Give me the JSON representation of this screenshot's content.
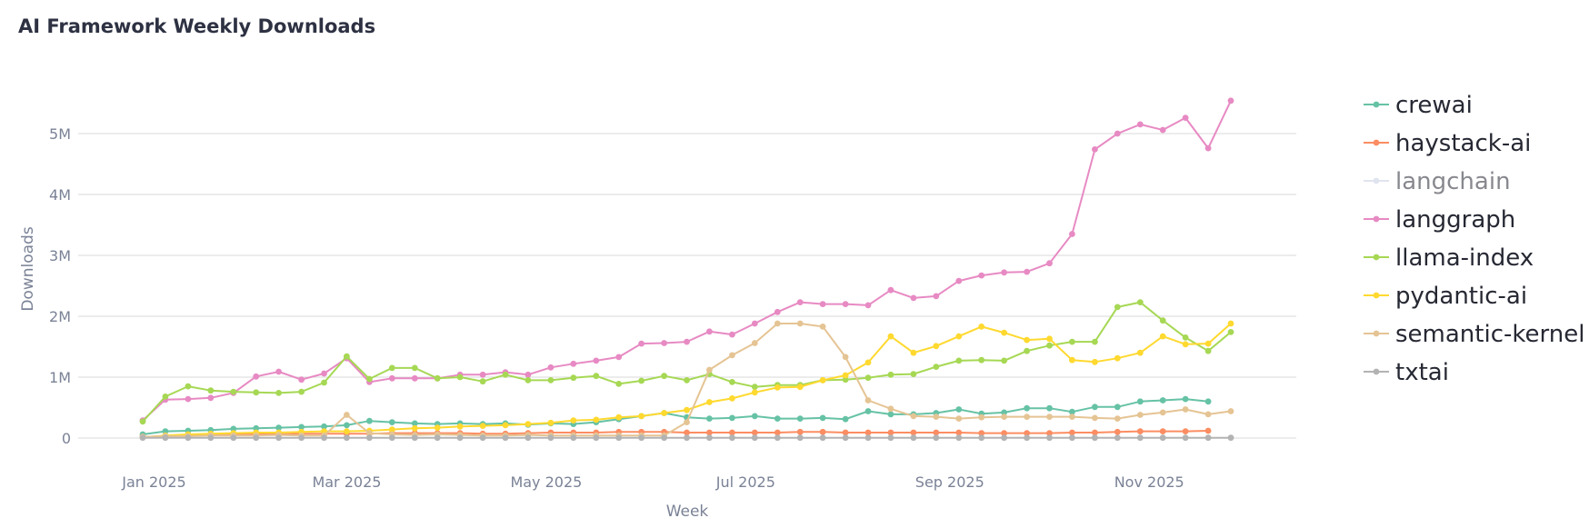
{
  "chart_data": {
    "type": "line",
    "title": "AI Framework Weekly Downloads",
    "xlabel": "Week",
    "ylabel": "Downloads",
    "ylim": [
      -200000,
      6000000
    ],
    "yticks": [
      0,
      1000000,
      2000000,
      3000000,
      4000000,
      5000000
    ],
    "ytick_labels": [
      "0",
      "1M",
      "2M",
      "3M",
      "4M",
      "5M"
    ],
    "xticks": [
      {
        "label": "Jan 2025",
        "week": 0.5
      },
      {
        "label": "Mar 2025",
        "week": 9
      },
      {
        "label": "May 2025",
        "week": 17.8
      },
      {
        "label": "Jul 2025",
        "week": 26.6
      },
      {
        "label": "Sep 2025",
        "week": 35.6
      },
      {
        "label": "Nov 2025",
        "week": 44.4
      }
    ],
    "weeks": 50,
    "legend_position": "right",
    "series": [
      {
        "name": "crewai",
        "color": "#66c2a5",
        "hidden": false,
        "values": [
          60000,
          110000,
          120000,
          130000,
          150000,
          160000,
          170000,
          180000,
          190000,
          210000,
          280000,
          260000,
          240000,
          230000,
          240000,
          230000,
          240000,
          220000,
          240000,
          230000,
          260000,
          310000,
          360000,
          410000,
          340000,
          320000,
          330000,
          360000,
          320000,
          320000,
          330000,
          310000,
          440000,
          390000,
          390000,
          410000,
          470000,
          400000,
          420000,
          490000,
          490000,
          430000,
          510000,
          510000,
          600000,
          620000,
          640000,
          600000
        ]
      },
      {
        "name": "haystack-ai",
        "color": "#fc8d62",
        "hidden": false,
        "values": [
          20000,
          30000,
          40000,
          50000,
          60000,
          60000,
          60000,
          70000,
          70000,
          70000,
          70000,
          80000,
          80000,
          80000,
          80000,
          70000,
          70000,
          80000,
          90000,
          90000,
          90000,
          100000,
          100000,
          100000,
          90000,
          90000,
          90000,
          90000,
          90000,
          100000,
          100000,
          90000,
          90000,
          90000,
          90000,
          90000,
          90000,
          80000,
          80000,
          80000,
          80000,
          90000,
          90000,
          100000,
          110000,
          110000,
          110000,
          120000
        ]
      },
      {
        "name": "langchain",
        "color": "#c7cfe3",
        "hidden": true,
        "values": []
      },
      {
        "name": "langgraph",
        "color": "#e78ac3",
        "hidden": false,
        "values": [
          290000,
          630000,
          640000,
          660000,
          740000,
          1010000,
          1090000,
          960000,
          1060000,
          1310000,
          920000,
          980000,
          980000,
          980000,
          1040000,
          1040000,
          1080000,
          1040000,
          1160000,
          1220000,
          1270000,
          1330000,
          1550000,
          1560000,
          1580000,
          1750000,
          1700000,
          1880000,
          2070000,
          2230000,
          2200000,
          2200000,
          2180000,
          2430000,
          2300000,
          2330000,
          2580000,
          2670000,
          2720000,
          2730000,
          2870000,
          3350000,
          4740000,
          5000000,
          5150000,
          5060000,
          5260000,
          4760000,
          5540000
        ]
      },
      {
        "name": "llama-index",
        "color": "#a6d854",
        "hidden": false,
        "values": [
          270000,
          680000,
          850000,
          780000,
          760000,
          750000,
          740000,
          760000,
          910000,
          1340000,
          970000,
          1150000,
          1150000,
          980000,
          1000000,
          930000,
          1040000,
          950000,
          950000,
          990000,
          1020000,
          890000,
          940000,
          1020000,
          950000,
          1050000,
          920000,
          840000,
          870000,
          870000,
          950000,
          960000,
          990000,
          1040000,
          1050000,
          1170000,
          1270000,
          1280000,
          1270000,
          1430000,
          1520000,
          1580000,
          1580000,
          2150000,
          2230000,
          1930000,
          1650000,
          1430000,
          1740000
        ]
      },
      {
        "name": "pydantic-ai",
        "color": "#ffd92f",
        "hidden": false,
        "values": [
          10000,
          40000,
          60000,
          70000,
          80000,
          90000,
          90000,
          100000,
          110000,
          110000,
          120000,
          140000,
          160000,
          170000,
          190000,
          200000,
          210000,
          230000,
          250000,
          290000,
          300000,
          340000,
          360000,
          410000,
          460000,
          590000,
          650000,
          750000,
          830000,
          840000,
          950000,
          1030000,
          1240000,
          1670000,
          1400000,
          1510000,
          1670000,
          1830000,
          1730000,
          1610000,
          1630000,
          1280000,
          1250000,
          1310000,
          1400000,
          1670000,
          1540000,
          1550000,
          1880000
        ]
      },
      {
        "name": "semantic-kernel",
        "color": "#e5c494",
        "hidden": false,
        "values": [
          20000,
          30000,
          30000,
          40000,
          40000,
          40000,
          50000,
          40000,
          40000,
          380000,
          80000,
          60000,
          50000,
          60000,
          50000,
          40000,
          40000,
          50000,
          40000,
          40000,
          40000,
          40000,
          40000,
          40000,
          260000,
          1120000,
          1360000,
          1560000,
          1880000,
          1880000,
          1830000,
          1330000,
          620000,
          480000,
          360000,
          350000,
          320000,
          340000,
          350000,
          350000,
          350000,
          350000,
          330000,
          320000,
          380000,
          420000,
          470000,
          390000,
          440000
        ]
      },
      {
        "name": "txtai",
        "color": "#b3b3b3",
        "hidden": false,
        "values": [
          5000,
          5000,
          5000,
          5000,
          5000,
          5000,
          5000,
          5000,
          5000,
          5000,
          5000,
          5000,
          5000,
          5000,
          5000,
          5000,
          5000,
          5000,
          5000,
          5000,
          5000,
          5000,
          5000,
          5000,
          5000,
          5000,
          5000,
          5000,
          5000,
          5000,
          5000,
          5000,
          5000,
          5000,
          5000,
          5000,
          5000,
          5000,
          5000,
          5000,
          5000,
          5000,
          5000,
          5000,
          5000,
          5000,
          5000,
          5000,
          5000
        ]
      }
    ]
  }
}
